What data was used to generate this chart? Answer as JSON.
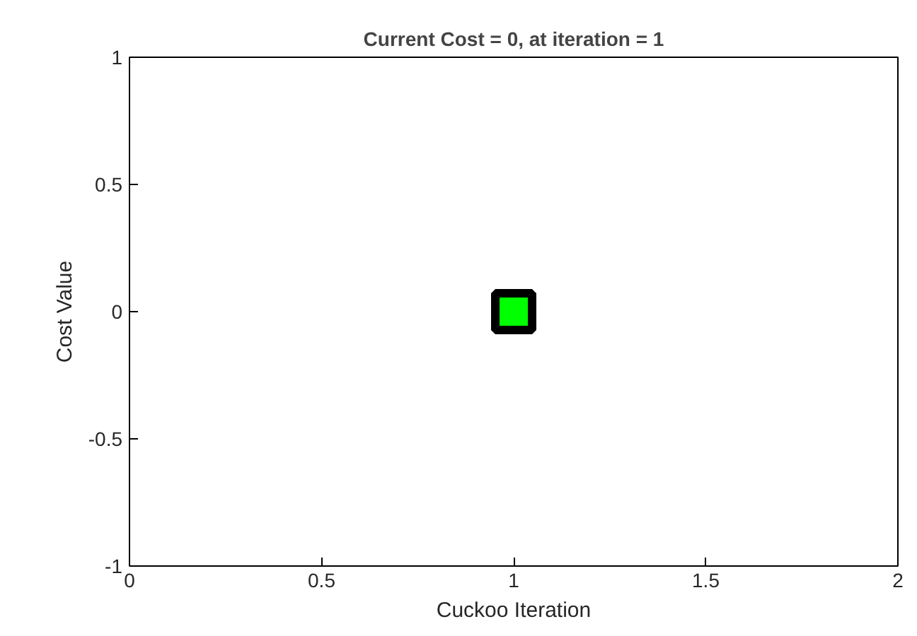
{
  "chart_data": {
    "type": "scatter",
    "title": "Current Cost = 0, at iteration = 1",
    "xlabel": "Cuckoo Iteration",
    "ylabel": "Cost Value",
    "x": [
      1
    ],
    "series": [
      {
        "color": "#00ff00",
        "values": [
          0
        ]
      }
    ],
    "marker": "square",
    "xlim": [
      0,
      2
    ],
    "ylim": [
      -1,
      1
    ],
    "xticks": [
      0,
      0.5,
      1,
      1.5,
      2
    ],
    "yticks": [
      -1,
      -0.5,
      0,
      0.5,
      1
    ],
    "grid": false
  }
}
